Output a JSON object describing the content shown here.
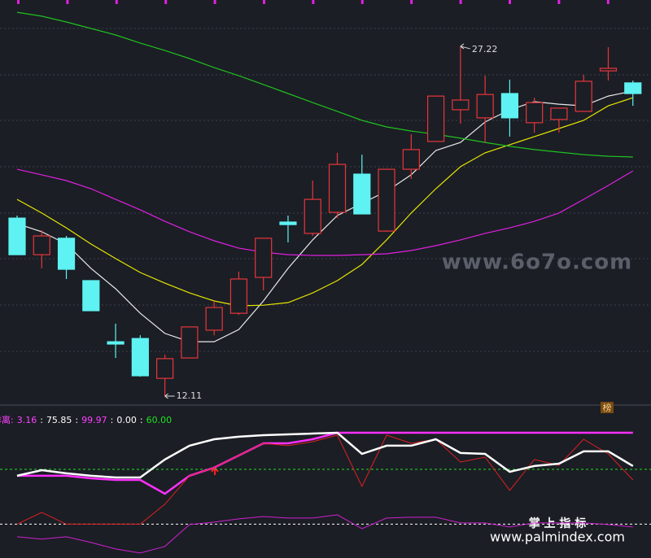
{
  "chart_data": [
    {
      "type": "candlestick",
      "ylim": [
        11.83,
        29.22
      ],
      "up_color": "#e8363a",
      "down_color": "#5ef2f2",
      "open": [
        19.8,
        18.22,
        18.93,
        17.1,
        14.46,
        14.6,
        12.88,
        13.76,
        14.96,
        15.69,
        17.24,
        19.63,
        19.14,
        20.05,
        21.7,
        19.24,
        21.91,
        23.11,
        24.48,
        24.13,
        25.18,
        23.92,
        24.06,
        24.41,
        26.16,
        25.64
      ],
      "high": [
        19.91,
        19.28,
        19.03,
        17.1,
        15.24,
        14.74,
        13.9,
        15.1,
        16.22,
        17.49,
        18.93,
        19.91,
        21.42,
        22.62,
        22.54,
        21.91,
        23.42,
        25.07,
        27.22,
        25.95,
        25.78,
        25.0,
        24.55,
        25.99,
        27.18,
        25.74
      ],
      "low": [
        18.22,
        17.63,
        17.17,
        15.8,
        13.76,
        12.95,
        12.11,
        13.76,
        14.74,
        15.62,
        16.68,
        18.75,
        19.03,
        19.8,
        19.98,
        19.21,
        21.49,
        23.11,
        23.88,
        23.07,
        23.32,
        23.49,
        23.49,
        24.41,
        25.74,
        24.65
      ],
      "close": [
        18.22,
        19.03,
        17.59,
        15.8,
        14.36,
        12.99,
        13.73,
        15.1,
        15.94,
        17.17,
        18.93,
        19.52,
        20.61,
        22.12,
        19.98,
        21.91,
        22.76,
        25.07,
        24.9,
        25.14,
        24.13,
        24.79,
        24.55,
        25.71,
        26.27,
        25.18
      ],
      "series": [
        {
          "color": "#e8e8e8",
          "values": [
            19.56,
            19.21,
            18.68,
            17.63,
            16.75,
            15.69,
            14.82,
            14.46,
            14.46,
            14.99,
            16.22,
            17.63,
            18.86,
            19.91,
            20.44,
            20.96,
            21.67,
            22.72,
            23.07,
            23.95,
            24.48,
            24.83,
            24.72,
            24.65,
            25.07,
            25.29
          ]
        },
        {
          "color": "#e6e600",
          "values": [
            20.61,
            20.02,
            19.38,
            18.68,
            18.05,
            17.45,
            16.99,
            16.57,
            16.22,
            16.01,
            16.04,
            16.15,
            16.57,
            17.1,
            17.8,
            18.86,
            20.02,
            21.07,
            22.02,
            22.62,
            22.97,
            23.32,
            23.67,
            24.02,
            24.65,
            25.0
          ]
        },
        {
          "color": "#e020e0",
          "values": [
            21.91,
            21.67,
            21.42,
            21.07,
            20.61,
            20.16,
            19.66,
            19.21,
            18.82,
            18.5,
            18.33,
            18.22,
            18.19,
            18.19,
            18.22,
            18.26,
            18.4,
            18.61,
            18.86,
            19.14,
            19.38,
            19.66,
            20.02,
            20.61,
            21.21,
            21.84
          ]
        },
        {
          "color": "#20c020",
          "values": [
            28.69,
            28.52,
            28.27,
            27.99,
            27.71,
            27.36,
            27.04,
            26.69,
            26.3,
            25.95,
            25.57,
            25.18,
            24.79,
            24.41,
            24.02,
            23.74,
            23.56,
            23.42,
            23.25,
            23.07,
            22.9,
            22.76,
            22.65,
            22.54,
            22.47,
            22.44
          ]
        }
      ],
      "max_label": "27.22",
      "min_label": "12.11",
      "badge": "榜",
      "watermarks": [
        "www.6o7o.com",
        "掌 上 指 标",
        "www.palmindex.com"
      ]
    },
    {
      "type": "line",
      "title": "乖离:",
      "separator": ":",
      "ylim": [
        -37,
        124
      ],
      "legend_values": [
        3.16,
        75.85,
        99.97,
        0,
        60
      ],
      "legend_labels": [
        "3.16",
        "75.85",
        "99.97",
        "0.00",
        "60.00"
      ],
      "legend_colors": [
        "#ff40ff",
        "#ffffff",
        "#ff40ff",
        "#ffffff",
        "#20e020"
      ],
      "series": [
        {
          "color": "#ff30ff",
          "width": 2.5,
          "values": [
            52.9,
            52.9,
            52.9,
            50.2,
            48.4,
            48.4,
            33.3,
            52.9,
            61.8,
            75.1,
            88.4,
            88.4,
            92.9,
            99.97,
            99.97,
            99.97,
            99.97,
            99.97,
            99.97,
            99.97,
            99.97,
            99.97,
            99.97,
            99.97,
            99.97,
            99.97
          ]
        },
        {
          "color": "#e02020",
          "width": 1,
          "values": [
            0,
            12.9,
            0,
            0,
            0,
            0,
            21.8,
            52.9,
            61.8,
            75.1,
            88.4,
            85.8,
            90.2,
            97.3,
            41.3,
            97.3,
            88.4,
            92.9,
            68.0,
            73.3,
            36.9,
            70.7,
            64.4,
            92.9,
            76.9,
            48.4
          ]
        },
        {
          "color": "#ffffff",
          "width": 2.5,
          "values": [
            52.9,
            59.1,
            55.6,
            52.9,
            51.1,
            51.1,
            70.7,
            85.8,
            92.9,
            95.6,
            97.3,
            98.2,
            99.1,
            100.0,
            76.9,
            85.8,
            85.8,
            92.9,
            77.8,
            76.9,
            57.3,
            63.6,
            66.2,
            79.6,
            79.6,
            63.6
          ]
        },
        {
          "color": "#d020d0",
          "width": 1,
          "values": [
            -13.8,
            -16.4,
            -13.8,
            -20.0,
            -27.1,
            -31.6,
            -24.4,
            -0.4,
            2.2,
            5.8,
            8.4,
            6.7,
            6.7,
            10.2,
            -4.9,
            6.7,
            7.6,
            7.6,
            1.3,
            1.3,
            -3.1,
            1.3,
            1.3,
            1.3,
            -0.4,
            -3.1
          ]
        }
      ]
    }
  ]
}
